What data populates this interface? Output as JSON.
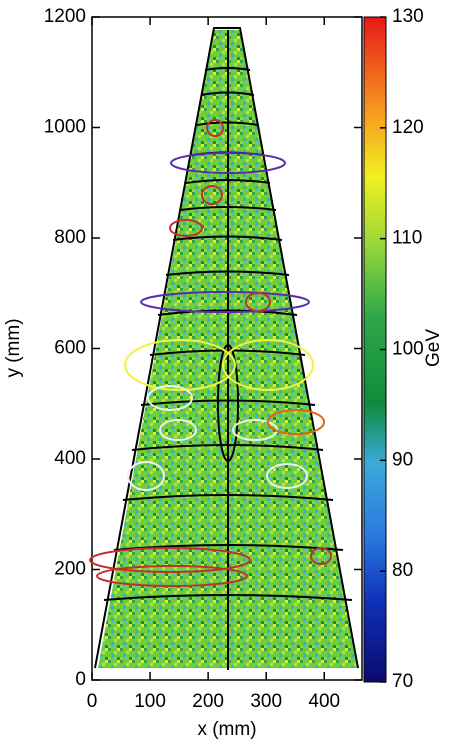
{
  "chart_data": {
    "type": "heatmap",
    "xlabel": "x (mm)",
    "ylabel": "y (mm)",
    "xlim": [
      0,
      465
    ],
    "ylim": [
      0,
      1200
    ],
    "xticks": [
      0,
      100,
      200,
      300,
      400
    ],
    "yticks": [
      0,
      200,
      400,
      600,
      800,
      1000,
      1200
    ],
    "colorbar": {
      "label": "GeV",
      "lim": [
        70,
        130
      ],
      "ticks": [
        70,
        80,
        90,
        100,
        110,
        120,
        130
      ]
    }
  }
}
